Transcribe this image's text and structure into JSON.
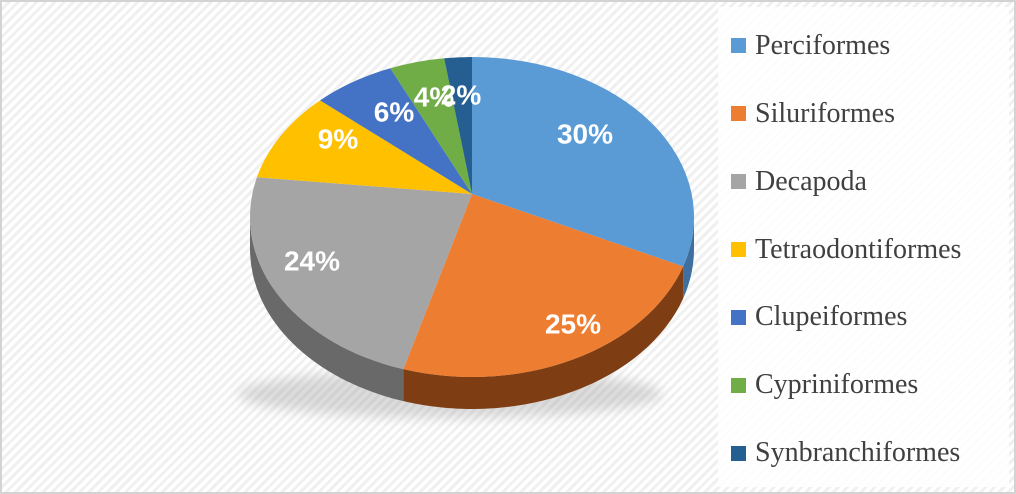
{
  "figure": {
    "kind": "3d-pie-chart-figure",
    "frame_border_color": "#D3D3D3",
    "background_hatch_color": "#F0F0F0",
    "legend_backdrop_color": "rgba(255,255,255,0.85)"
  },
  "chart_data": {
    "type": "pie",
    "projection": "3d",
    "title": "",
    "categories": [
      "Perciformes",
      "Siluriformes",
      "Decapoda",
      "Tetraodontiformes",
      "Clupeiformes",
      "Cypriniformes",
      "Synbranchiformes"
    ],
    "values": [
      30,
      25,
      24,
      9,
      6,
      4,
      2
    ],
    "data_labels": [
      "30%",
      "25%",
      "24%",
      "9%",
      "6%",
      "4%",
      "2%"
    ],
    "colors": [
      "#5B9BD5",
      "#ED7D31",
      "#A5A5A5",
      "#FFC000",
      "#4472C4",
      "#70AD47",
      "#255E91"
    ],
    "side_colors": [
      "#3E6F9F",
      "#7E3D12",
      "#696969",
      "#B38600",
      "#2F4E88",
      "#4E7A31",
      "#1A425F"
    ],
    "data_label_color": "#FFFFFF",
    "legend_position": "right",
    "legend_text_color": "#404040",
    "start_angle_deg": 0,
    "direction": "clockwise",
    "grid": false
  }
}
